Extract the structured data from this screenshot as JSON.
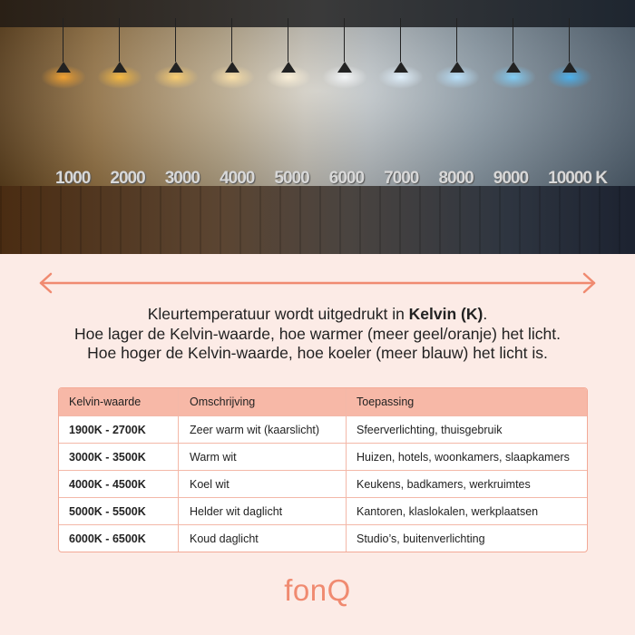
{
  "photo": {
    "lamp_colors": [
      "#f0a030",
      "#f5b840",
      "#f8cc70",
      "#fae0a8",
      "#fbf0d8",
      "#f4f6f8",
      "#e0f0fc",
      "#b8e0fa",
      "#80ccf5",
      "#4ab0ec"
    ],
    "scale_labels": [
      "1000",
      "2000",
      "3000",
      "4000",
      "5000",
      "6000",
      "7000",
      "8000",
      "9000",
      "10000 K"
    ]
  },
  "arrow": {
    "color": "#f08a70"
  },
  "intro": {
    "line1_pre": "Kleurtemperatuur wordt uitgedrukt in ",
    "line1_bold": "Kelvin (K)",
    "line1_post": ".",
    "line2": "Hoe lager de Kelvin-waarde, hoe warmer (meer geel/oranje) het licht.",
    "line3": "Hoe hoger de Kelvin-waarde, hoe koeler (meer blauw) het licht is."
  },
  "table": {
    "headers": [
      "Kelvin-waarde",
      "Omschrijving",
      "Toepassing"
    ],
    "rows": [
      [
        "1900K - 2700K",
        "Zeer warm wit (kaarslicht)",
        "Sfeerverlichting, thuisgebruik"
      ],
      [
        "3000K - 3500K",
        "Warm wit",
        "Huizen, hotels, woonkamers, slaapkamers"
      ],
      [
        "4000K - 4500K",
        "Koel wit",
        "Keukens, badkamers, werkruimtes"
      ],
      [
        "5000K - 5500K",
        "Helder wit daglicht",
        "Kantoren, klaslokalen, werkplaatsen"
      ],
      [
        "6000K - 6500K",
        "Koud daglicht",
        "Studio’s, buitenverlichting"
      ]
    ]
  },
  "logo": "fonQ"
}
